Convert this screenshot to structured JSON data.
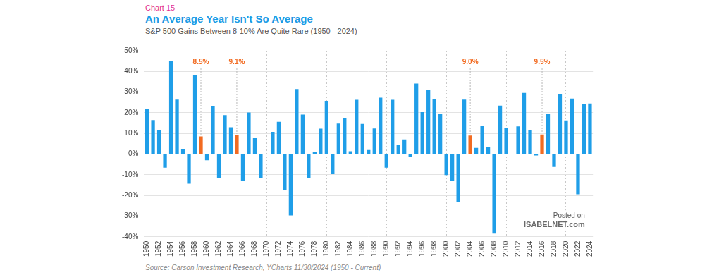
{
  "chart_data": {
    "type": "bar",
    "kicker": "Chart 15",
    "title": "An Average Year Isn't So Average",
    "subtitle": "S&P 500 Gains Between 8-10% Are Quite Rare (1950 - 2024)",
    "source": "Source: Carson Investment Research, YCharts 11/30/2024 (1950 - Current)",
    "watermark": [
      "Posted on",
      "ISABELNET.com"
    ],
    "categories": [
      "1950",
      null,
      "1952",
      null,
      "1954",
      null,
      "1956",
      null,
      "1958",
      null,
      "1960",
      null,
      "1962",
      null,
      "1964",
      null,
      "1966",
      null,
      "1968",
      null,
      "1970",
      null,
      "1972",
      null,
      "1974",
      null,
      "1976",
      null,
      "1978",
      null,
      "1980",
      null,
      "1982",
      null,
      "1984",
      null,
      "1986",
      null,
      "1988",
      null,
      "1990",
      null,
      "1992",
      null,
      "1994",
      null,
      "1996",
      null,
      "1998",
      null,
      "2000",
      null,
      "2002",
      null,
      "2004",
      null,
      "2006",
      null,
      "2008",
      null,
      "2010",
      null,
      "2012",
      null,
      "2014",
      null,
      "2016",
      null,
      "2018",
      null,
      "2020",
      null,
      "2022",
      null,
      "2024"
    ],
    "values": [
      21.8,
      16.5,
      11.8,
      -6.6,
      45.0,
      26.4,
      2.6,
      -14.3,
      38.1,
      8.5,
      -3.0,
      23.1,
      -11.8,
      18.9,
      13.0,
      9.1,
      -13.1,
      20.1,
      7.7,
      -11.4,
      0.1,
      10.8,
      15.6,
      -17.4,
      -29.7,
      31.5,
      19.1,
      -11.5,
      1.1,
      12.3,
      25.8,
      -9.7,
      14.8,
      17.3,
      1.4,
      26.3,
      14.6,
      2.0,
      12.4,
      27.3,
      -6.6,
      26.3,
      4.5,
      7.1,
      -1.5,
      34.1,
      20.3,
      31.0,
      26.7,
      19.5,
      -10.1,
      -13.0,
      -23.4,
      26.4,
      9.0,
      3.0,
      13.6,
      3.5,
      -38.5,
      23.5,
      12.8,
      0.0,
      13.4,
      29.6,
      11.4,
      -0.7,
      9.5,
      19.4,
      -6.2,
      28.9,
      16.3,
      26.9,
      -19.4,
      24.2,
      24.5
    ],
    "colors": [
      "#1f9ee8",
      "#1f9ee8",
      "#1f9ee8",
      "#1f9ee8",
      "#1f9ee8",
      "#1f9ee8",
      "#1f9ee8",
      "#1f9ee8",
      "#1f9ee8",
      "#f26b21",
      "#1f9ee8",
      "#1f9ee8",
      "#1f9ee8",
      "#1f9ee8",
      "#1f9ee8",
      "#f26b21",
      "#1f9ee8",
      "#1f9ee8",
      "#1f9ee8",
      "#1f9ee8",
      "#1f9ee8",
      "#1f9ee8",
      "#1f9ee8",
      "#1f9ee8",
      "#1f9ee8",
      "#1f9ee8",
      "#1f9ee8",
      "#1f9ee8",
      "#1f9ee8",
      "#1f9ee8",
      "#1f9ee8",
      "#1f9ee8",
      "#1f9ee8",
      "#1f9ee8",
      "#1f9ee8",
      "#1f9ee8",
      "#1f9ee8",
      "#1f9ee8",
      "#1f9ee8",
      "#1f9ee8",
      "#1f9ee8",
      "#1f9ee8",
      "#1f9ee8",
      "#1f9ee8",
      "#1f9ee8",
      "#1f9ee8",
      "#1f9ee8",
      "#1f9ee8",
      "#1f9ee8",
      "#1f9ee8",
      "#1f9ee8",
      "#1f9ee8",
      "#1f9ee8",
      "#1f9ee8",
      "#f26b21",
      "#1f9ee8",
      "#1f9ee8",
      "#1f9ee8",
      "#1f9ee8",
      "#1f9ee8",
      "#1f9ee8",
      "#1f9ee8",
      "#1f9ee8",
      "#1f9ee8",
      "#1f9ee8",
      "#1f9ee8",
      "#f26b21",
      "#1f9ee8",
      "#1f9ee8",
      "#1f9ee8",
      "#1f9ee8",
      "#1f9ee8",
      "#1f9ee8",
      "#1f9ee8",
      "#1f9ee8"
    ],
    "annotations": [
      {
        "value": 8.5,
        "label": "8.5%"
      },
      {
        "value": 9.1,
        "label": "9.1%"
      },
      {
        "value": 9.0,
        "label": "9.0%"
      },
      {
        "value": 9.5,
        "label": "9.5%"
      }
    ],
    "ylim": [
      -40,
      50
    ],
    "yticks": [
      {
        "value": -40,
        "label": "-40%"
      },
      {
        "value": -30,
        "label": "-30%"
      },
      {
        "value": -20,
        "label": "-20%"
      },
      {
        "value": -10,
        "label": "-10%"
      },
      {
        "value": 0,
        "label": "0%"
      },
      {
        "value": 10,
        "label": "10%"
      },
      {
        "value": 20,
        "label": "20%"
      },
      {
        "value": 30,
        "label": "30%"
      },
      {
        "value": 40,
        "label": "40%"
      },
      {
        "value": 50,
        "label": "50%"
      }
    ],
    "grid": true
  }
}
